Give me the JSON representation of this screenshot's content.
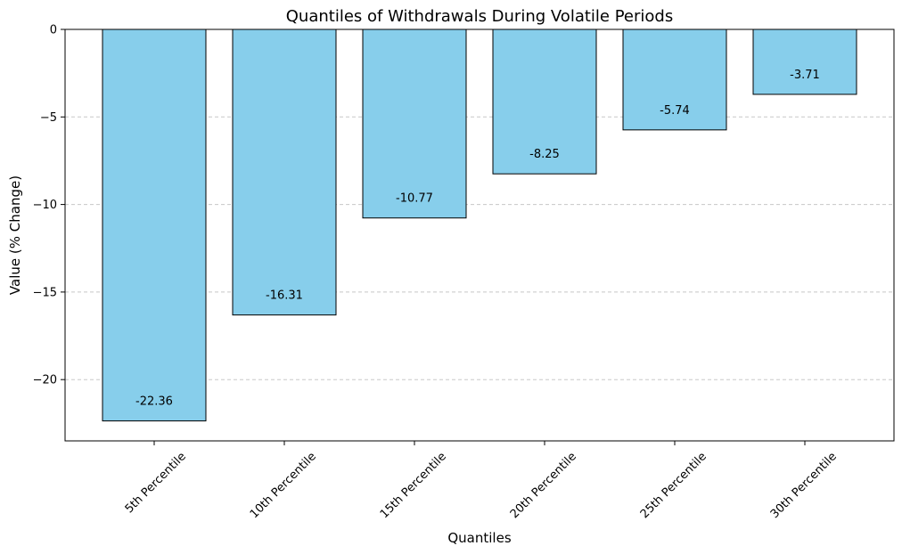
{
  "chart_data": {
    "type": "bar",
    "title": "Quantiles of Withdrawals During Volatile Periods",
    "xlabel": "Quantiles",
    "ylabel": "Value (% Change)",
    "categories": [
      "5th Percentile",
      "10th Percentile",
      "15th Percentile",
      "20th Percentile",
      "25th Percentile",
      "30th Percentile"
    ],
    "values": [
      -22.36,
      -16.31,
      -10.77,
      -8.25,
      -5.74,
      -3.71
    ],
    "data_labels": [
      "-22.36",
      "-16.31",
      "-10.77",
      "-8.25",
      "-5.74",
      "-3.71"
    ],
    "ylim": [
      -23.5,
      0
    ],
    "yticks": [
      0,
      -5,
      -10,
      -15,
      -20
    ],
    "ytick_labels": [
      "0",
      "−5",
      "−10",
      "−15",
      "−20"
    ],
    "grid": "y-dashed",
    "colors": {
      "bar_fill": "#87CEEB",
      "bar_edge": "#000000",
      "grid": "#c8c8c8"
    }
  }
}
